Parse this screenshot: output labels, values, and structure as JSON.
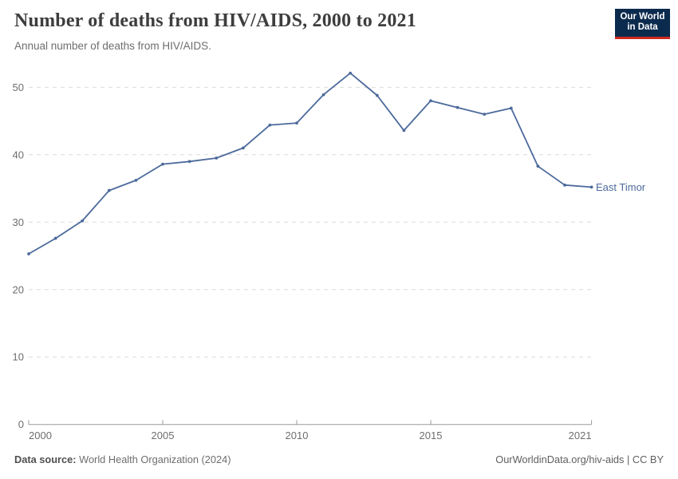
{
  "header": {
    "title": "Number of deaths from HIV/AIDS, 2000 to 2021",
    "subtitle": "Annual number of deaths from HIV/AIDS.",
    "logo": {
      "line1": "Our World",
      "line2": "in Data",
      "bg_color": "#0b2b4e",
      "accent_color": "#d0281f"
    }
  },
  "chart_data": {
    "type": "line",
    "title": "Number of deaths from HIV/AIDS, 2000 to 2021",
    "xlabel": "",
    "ylabel": "",
    "ylim": [
      0,
      55
    ],
    "yticks": [
      0,
      10,
      20,
      30,
      40,
      50
    ],
    "xticks": [
      2000,
      2005,
      2010,
      2015,
      2021
    ],
    "grid": "horizontal-dashed",
    "legend_position": "end-of-line-label",
    "series": [
      {
        "name": "East Timor",
        "color": "#4c6a9c",
        "x": [
          2000,
          2001,
          2002,
          2003,
          2004,
          2005,
          2006,
          2007,
          2008,
          2009,
          2010,
          2011,
          2012,
          2013,
          2014,
          2015,
          2016,
          2017,
          2018,
          2019,
          2020,
          2021
        ],
        "values": [
          25.3,
          27.6,
          30.2,
          34.7,
          36.2,
          38.6,
          39.0,
          39.5,
          41.0,
          44.4,
          44.7,
          48.9,
          52.1,
          48.8,
          43.6,
          48.0,
          47.0,
          46.0,
          46.9,
          38.3,
          35.5,
          35.2
        ]
      }
    ]
  },
  "footer": {
    "source_label": "Data source:",
    "source_value": "World Health Organization (2024)",
    "credit": "OurWorldinData.org/hiv-aids | CC BY"
  }
}
